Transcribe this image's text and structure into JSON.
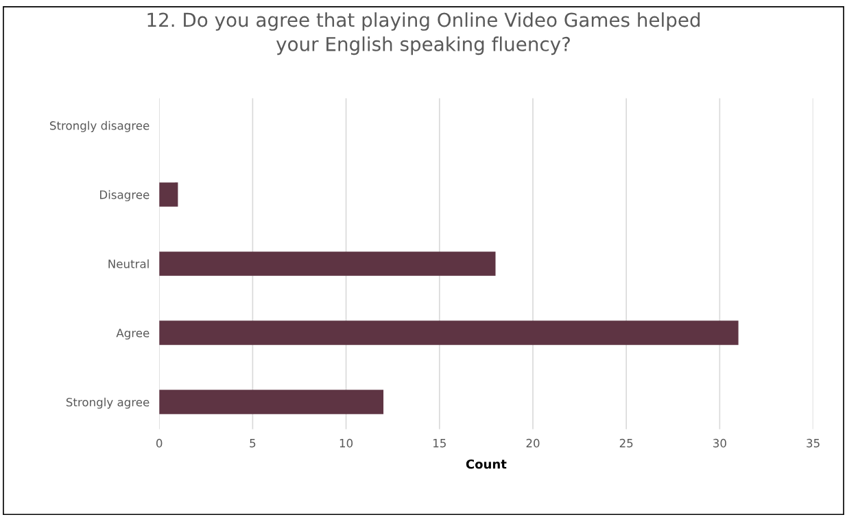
{
  "chart_data": {
    "type": "bar",
    "orientation": "horizontal",
    "title": "12. Do you agree that playing Online Video Games helped\nyour English speaking fluency?",
    "categories": [
      "Strongly disagree",
      "Disagree",
      "Neutral",
      "Agree",
      "Strongly agree"
    ],
    "values": [
      0,
      1,
      18,
      31,
      12
    ],
    "color": "#5e3443",
    "xlabel": "Count",
    "xlim": [
      0,
      35
    ],
    "xticks": [
      0,
      5,
      10,
      15,
      20,
      25,
      30,
      35
    ],
    "grid": "x"
  }
}
